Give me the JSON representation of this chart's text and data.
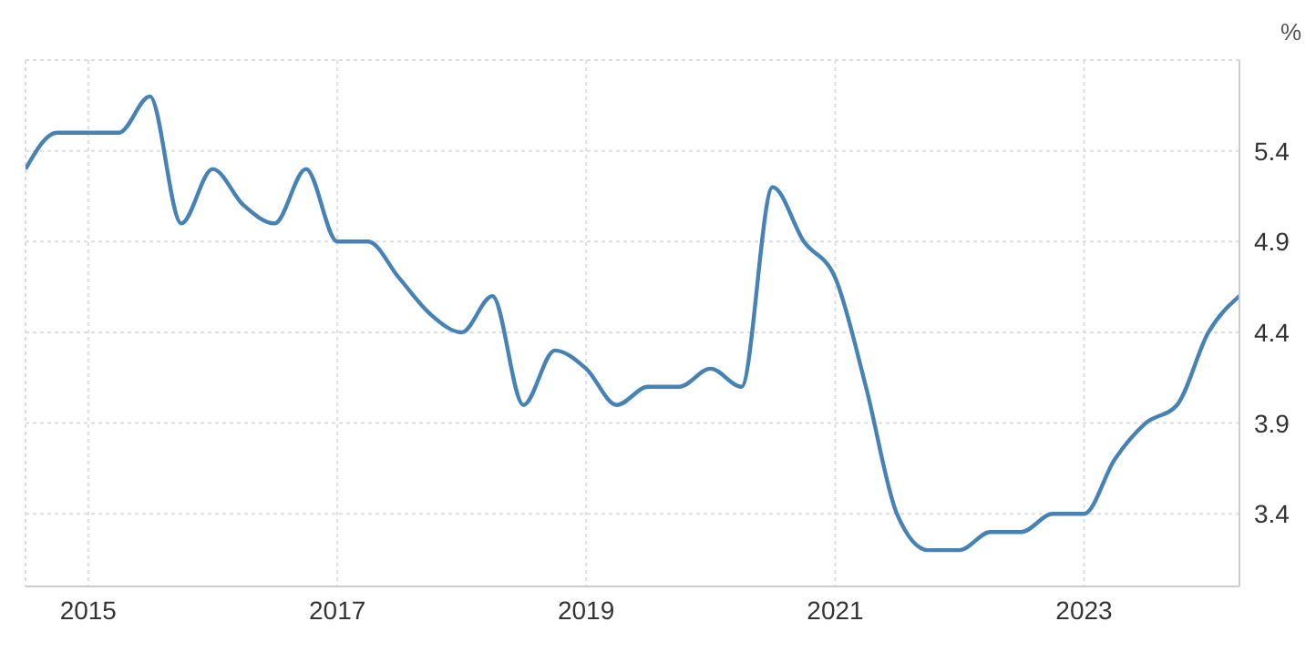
{
  "chart_data": {
    "type": "line",
    "ylabel": "%",
    "x": [
      "2014-07",
      "2014-10",
      "2015-01",
      "2015-04",
      "2015-07",
      "2015-10",
      "2016-01",
      "2016-04",
      "2016-07",
      "2016-10",
      "2017-01",
      "2017-04",
      "2017-07",
      "2017-10",
      "2018-01",
      "2018-04",
      "2018-07",
      "2018-10",
      "2019-01",
      "2019-04",
      "2019-07",
      "2019-10",
      "2020-01",
      "2020-04",
      "2020-07",
      "2020-10",
      "2021-01",
      "2021-04",
      "2021-07",
      "2021-10",
      "2022-01",
      "2022-04",
      "2022-07",
      "2022-10",
      "2023-01",
      "2023-04",
      "2023-07",
      "2023-10",
      "2024-01",
      "2024-04"
    ],
    "series": [
      {
        "color": "#4682b4",
        "values": [
          5.3,
          5.5,
          5.5,
          5.5,
          5.7,
          5.0,
          5.3,
          5.1,
          5.0,
          5.3,
          4.9,
          4.9,
          4.7,
          4.5,
          4.4,
          4.6,
          4.0,
          4.3,
          4.2,
          4.0,
          4.1,
          4.1,
          4.2,
          4.1,
          5.2,
          4.9,
          4.7,
          4.1,
          3.4,
          3.2,
          3.2,
          3.3,
          3.3,
          3.4,
          3.4,
          3.7,
          3.9,
          4.0,
          4.4,
          4.6
        ]
      }
    ],
    "xlim": [
      "2014-07",
      "2024-04"
    ],
    "xticks": [
      "2015",
      "2017",
      "2019",
      "2021",
      "2023"
    ],
    "ylim": [
      3.0,
      5.9
    ],
    "yticks": [
      {
        "value": 3.4,
        "label": "3.4"
      },
      {
        "value": 3.9,
        "label": "3.9"
      },
      {
        "value": 4.4,
        "label": "4.4"
      },
      {
        "value": 4.9,
        "label": "4.9"
      },
      {
        "value": 5.4,
        "label": "5.4"
      },
      {
        "value": 5.9,
        "label": null
      }
    ],
    "grid": true,
    "legend": false,
    "marker": "none",
    "line_style": "solid"
  }
}
